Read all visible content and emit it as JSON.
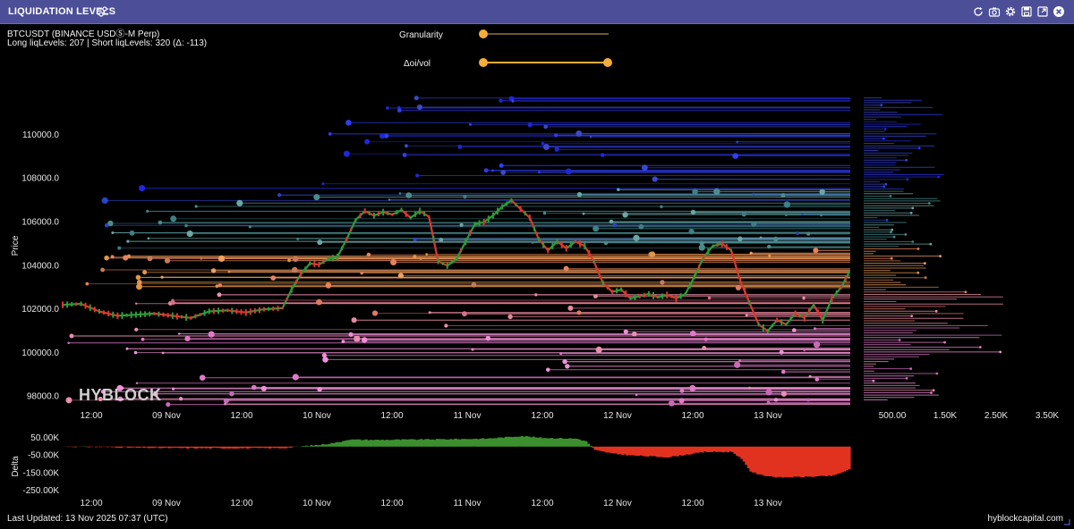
{
  "window": {
    "title": "LIQUIDATION LEVELS",
    "toolbar_icons": [
      "refresh-icon",
      "camera-icon",
      "gear-icon",
      "save-icon",
      "expand-icon",
      "close-icon"
    ]
  },
  "header": {
    "symbol": "BTCUSDT (BINANCE USDⓈ-M Perp)",
    "liq_summary": "Long liqLevels: 207 | Short liqLevels: 320 (Δ: -113)"
  },
  "controls": {
    "granularity_label": "Granularity",
    "granularity_value": 0,
    "oi_vol_label": "Δoi/vol",
    "oi_vol_range": [
      0,
      1
    ]
  },
  "footer": {
    "last_updated": "Last Updated: 13 Nov 2025 07:37 (UTC)",
    "site": "hyblockcapital.com"
  },
  "watermark": "HYBLOCK",
  "colors": {
    "titlebar": "#4c4f97",
    "accent": "#f4ad3a",
    "price_up": "#2e9a3a",
    "price_down": "#d9382e",
    "delta_pos": "#3c8f2e",
    "delta_neg": "#e0321f",
    "short_levels": "#2b34d8",
    "long_levels": "#e07ac8"
  },
  "chart_data": [
    {
      "type": "line",
      "title": "",
      "ylabel": "Price",
      "ylim": [
        97000,
        112500
      ],
      "y_ticks": [
        "98000.0",
        "100000.0",
        "102000.0",
        "104000.0",
        "106000.0",
        "108000.0",
        "110000.0"
      ],
      "x_ticks": [
        "12:00",
        "09 Nov",
        "12:00",
        "10 Nov",
        "12:00",
        "11 Nov",
        "12:00",
        "12 Nov",
        "12:00",
        "13 Nov"
      ],
      "series": [
        {
          "name": "BTCUSDT",
          "points": [
            [
              0,
              102200
            ],
            [
              2,
              102250
            ],
            [
              4,
              101900
            ],
            [
              6,
              101700
            ],
            [
              8,
              101750
            ],
            [
              10,
              101800
            ],
            [
              12,
              101700
            ],
            [
              14,
              101600
            ],
            [
              16,
              101900
            ],
            [
              18,
              101950
            ],
            [
              20,
              101850
            ],
            [
              22,
              102000
            ],
            [
              24,
              102050
            ],
            [
              25,
              102900
            ],
            [
              26,
              103600
            ],
            [
              27,
              104100
            ],
            [
              28,
              104050
            ],
            [
              29,
              104300
            ],
            [
              30,
              104400
            ],
            [
              31,
              105200
            ],
            [
              32,
              106100
            ],
            [
              33,
              106500
            ],
            [
              34,
              106300
            ],
            [
              35,
              106450
            ],
            [
              36,
              106350
            ],
            [
              37,
              106550
            ],
            [
              38,
              106200
            ],
            [
              39,
              106500
            ],
            [
              40,
              106250
            ],
            [
              41,
              104200
            ],
            [
              42,
              104000
            ],
            [
              43,
              104300
            ],
            [
              44,
              105100
            ],
            [
              45,
              105900
            ],
            [
              46,
              106000
            ],
            [
              47,
              106300
            ],
            [
              48,
              106700
            ],
            [
              49,
              107000
            ],
            [
              50,
              106600
            ],
            [
              51,
              106200
            ],
            [
              52,
              105200
            ],
            [
              53,
              104700
            ],
            [
              54,
              105100
            ],
            [
              55,
              104800
            ],
            [
              56,
              105100
            ],
            [
              57,
              104900
            ],
            [
              58,
              104200
            ],
            [
              59,
              103200
            ],
            [
              60,
              102800
            ],
            [
              61,
              102900
            ],
            [
              62,
              102500
            ],
            [
              63,
              102600
            ],
            [
              64,
              102700
            ],
            [
              65,
              102550
            ],
            [
              66,
              102650
            ],
            [
              67,
              102500
            ],
            [
              68,
              102700
            ],
            [
              69,
              103500
            ],
            [
              70,
              104400
            ],
            [
              71,
              104900
            ],
            [
              72,
              105000
            ],
            [
              73,
              104700
            ],
            [
              74,
              103300
            ],
            [
              75,
              102300
            ],
            [
              76,
              101300
            ],
            [
              77,
              101000
            ],
            [
              78,
              101500
            ],
            [
              79,
              101300
            ],
            [
              80,
              101800
            ],
            [
              81,
              101600
            ],
            [
              82,
              102200
            ],
            [
              83,
              101500
            ],
            [
              84,
              102500
            ],
            [
              85,
              103000
            ],
            [
              86,
              103800
            ]
          ]
        }
      ]
    },
    {
      "type": "bar",
      "title": "",
      "ylabel": "Delta",
      "ylim": [
        -275000,
        70000
      ],
      "y_ticks": [
        "50.00K",
        "-50.00K",
        "-150.00K",
        "-250.00K"
      ],
      "x_ticks": [
        "12:00",
        "09 Nov",
        "12:00",
        "10 Nov",
        "12:00",
        "11 Nov",
        "12:00",
        "12 Nov",
        "12:00",
        "13 Nov"
      ],
      "series": [
        {
          "name": "Delta",
          "points": [
            [
              0,
              0
            ],
            [
              4,
              -2000
            ],
            [
              8,
              -6000
            ],
            [
              12,
              -8000
            ],
            [
              16,
              -9000
            ],
            [
              20,
              -9000
            ],
            [
              24,
              -8000
            ],
            [
              26,
              2000
            ],
            [
              28,
              10000
            ],
            [
              30,
              25000
            ],
            [
              31,
              40000
            ],
            [
              34,
              38000
            ],
            [
              38,
              40000
            ],
            [
              42,
              42000
            ],
            [
              46,
              45000
            ],
            [
              48,
              52000
            ],
            [
              50,
              60000
            ],
            [
              52,
              50000
            ],
            [
              56,
              45000
            ],
            [
              57,
              30000
            ],
            [
              58,
              -20000
            ],
            [
              60,
              -40000
            ],
            [
              62,
              -50000
            ],
            [
              66,
              -60000
            ],
            [
              70,
              -30000
            ],
            [
              73,
              -30000
            ],
            [
              74,
              -70000
            ],
            [
              75,
              -140000
            ],
            [
              76,
              -160000
            ],
            [
              78,
              -175000
            ],
            [
              82,
              -170000
            ],
            [
              84,
              -165000
            ],
            [
              86,
              -125000
            ]
          ]
        }
      ]
    },
    {
      "type": "bar",
      "title": "",
      "xlabel": "",
      "x_ticks": [
        "500.00",
        "1.50K",
        "2.50K",
        "3.50K"
      ],
      "series": []
    }
  ]
}
